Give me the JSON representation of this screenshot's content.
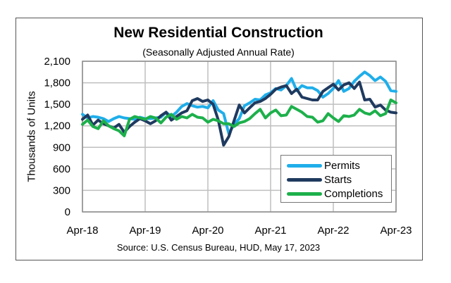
{
  "chart_data": {
    "type": "line",
    "title": "New Residential Construction",
    "subtitle": "(Seasonally Adjusted Annual Rate)",
    "xlabel": "",
    "ylabel": "Thousands of Units",
    "source": "Source:  U.S. Census Bureau, HUD, May 17, 2023",
    "ylim": [
      0,
      2100
    ],
    "yticks": [
      0,
      300,
      600,
      900,
      1200,
      1500,
      1800,
      2100
    ],
    "ytick_labels": [
      "0",
      "300",
      "600",
      "900",
      "1,200",
      "1,500",
      "1,800",
      "2,100"
    ],
    "xtick_labels": [
      "Apr-18",
      "Apr-19",
      "Apr-20",
      "Apr-21",
      "Apr-22",
      "Apr-23"
    ],
    "x_months": 61,
    "grid": true,
    "legend_position": "bottom-right",
    "series": [
      {
        "name": "Permits",
        "color": "#1FAEEA",
        "values": [
          1360,
          1310,
          1330,
          1320,
          1300,
          1260,
          1300,
          1330,
          1310,
          1300,
          1290,
          1320,
          1300,
          1300,
          1310,
          1320,
          1390,
          1330,
          1390,
          1470,
          1510,
          1480,
          1460,
          1470,
          1450,
          1550,
          1420,
          1370,
          1090,
          1220,
          1300,
          1480,
          1520,
          1570,
          1560,
          1630,
          1660,
          1720,
          1700,
          1760,
          1860,
          1690,
          1760,
          1730,
          1730,
          1690,
          1600,
          1650,
          1720,
          1830,
          1680,
          1720,
          1820,
          1890,
          1950,
          1900,
          1830,
          1880,
          1820,
          1690,
          1680
        ]
      },
      {
        "name": "Starts",
        "color": "#1F3A5F",
        "values": [
          1290,
          1350,
          1210,
          1280,
          1230,
          1200,
          1170,
          1220,
          1110,
          1190,
          1250,
          1300,
          1270,
          1230,
          1270,
          1340,
          1390,
          1280,
          1330,
          1380,
          1410,
          1550,
          1580,
          1540,
          1560,
          1500,
          1280,
          930,
          1050,
          1270,
          1490,
          1380,
          1450,
          1520,
          1540,
          1580,
          1640,
          1710,
          1740,
          1760,
          1650,
          1710,
          1600,
          1580,
          1560,
          1560,
          1680,
          1730,
          1780,
          1700,
          1770,
          1800,
          1720,
          1810,
          1560,
          1570,
          1460,
          1490,
          1420,
          1390,
          1380
        ]
      },
      {
        "name": "Completions",
        "color": "#1DB04B",
        "values": [
          1220,
          1280,
          1190,
          1160,
          1270,
          1200,
          1160,
          1130,
          1060,
          1290,
          1330,
          1310,
          1290,
          1330,
          1310,
          1240,
          1320,
          1360,
          1290,
          1330,
          1310,
          1360,
          1320,
          1310,
          1250,
          1290,
          1270,
          1230,
          1230,
          1190,
          1240,
          1260,
          1300,
          1370,
          1430,
          1310,
          1380,
          1420,
          1340,
          1350,
          1470,
          1430,
          1390,
          1330,
          1320,
          1250,
          1270,
          1370,
          1310,
          1260,
          1340,
          1330,
          1350,
          1430,
          1380,
          1360,
          1410,
          1340,
          1370,
          1560,
          1520
        ]
      }
    ]
  }
}
